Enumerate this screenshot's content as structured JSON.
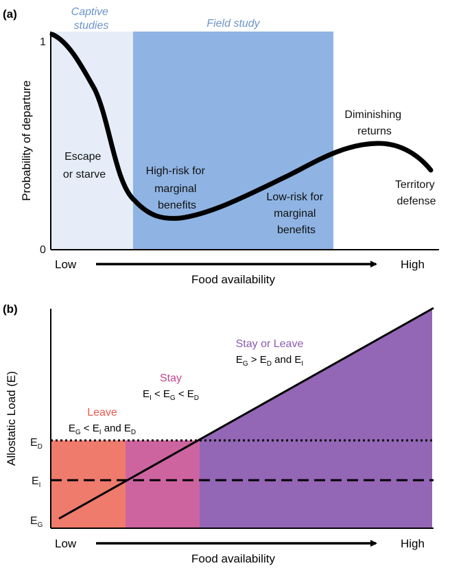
{
  "colors": {
    "captive_bg": "#e6edf8",
    "field_bg": "#8fb4e3",
    "region_title": "#6a93c9",
    "leave_fill": "#ef7b6d",
    "stay_fill": "#cd64a0",
    "stay_or_leave_fill": "#9466b6",
    "leave_text": "#e8584e",
    "stay_text": "#c4458a",
    "stay_or_leave_text": "#8a5cb0"
  },
  "panel_a": {
    "tag": "(a)",
    "region_captive": [
      "Captive",
      "studies"
    ],
    "region_field": "Field study",
    "ylabel": "Probability of departure",
    "ytick_top": "1",
    "ytick_bottom": "0",
    "x_low": "Low",
    "x_high": "High",
    "xlabel": "Food availability",
    "ann_escape": [
      "Escape",
      "or starve"
    ],
    "ann_highrisk": [
      "High-risk for",
      "marginal",
      "benefits"
    ],
    "ann_lowrisk": [
      "Low-risk for",
      "marginal",
      "benefits"
    ],
    "ann_diminishing": [
      "Diminishing",
      "returns"
    ],
    "ann_territory": [
      "Territory",
      "defense"
    ]
  },
  "panel_b": {
    "tag": "(b)",
    "ylabel": "Allostatic Load (E)",
    "ytick_ED": "E",
    "ytick_ED_sub": "D",
    "ytick_EI": "E",
    "ytick_EI_sub": "I",
    "ytick_EG": "E",
    "ytick_EG_sub": "G",
    "x_low": "Low",
    "x_high": "High",
    "xlabel": "Food availability",
    "leave_title": "Leave",
    "stay_title": "Stay",
    "stay_or_leave_title": "Stay or Leave",
    "leave_condition": {
      "e1": "E",
      "s1": "G",
      "op1": " < E",
      "s2": "I",
      "tail": " and E",
      "s3": "D"
    },
    "stay_condition": {
      "e1": "E",
      "s1": "I",
      "op1": " < E",
      "s2": "G",
      "op2": " < E",
      "s3": "D"
    },
    "stay_or_leave_condition": {
      "e1": "E",
      "s1": "G",
      "op1": " > E",
      "s2": "D",
      "tail": " and E",
      "s3": "I"
    }
  }
}
